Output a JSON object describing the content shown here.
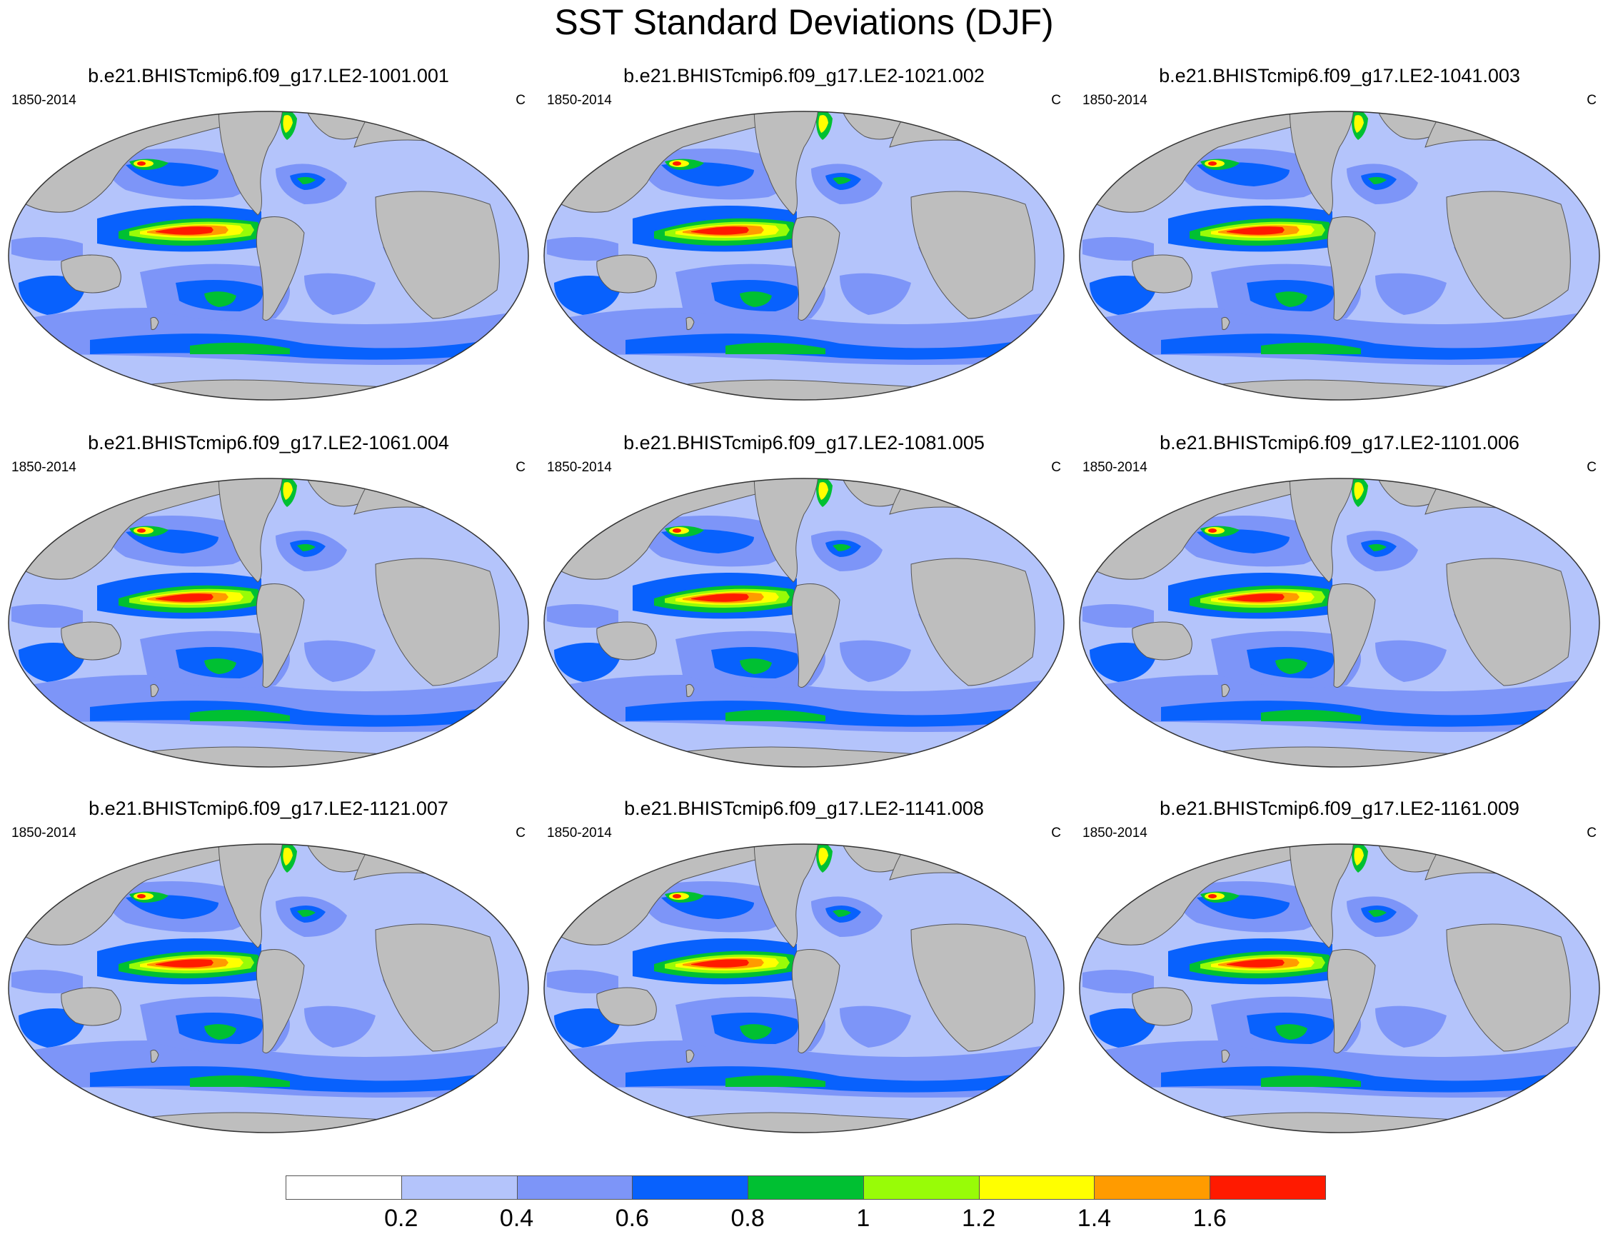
{
  "title": "SST Standard Deviations (DJF)",
  "panels": [
    {
      "title": "b.e21.BHISTcmip6.f09_g17.LE2-1001.001",
      "left_label": "1850-2014",
      "right_label": "C"
    },
    {
      "title": "b.e21.BHISTcmip6.f09_g17.LE2-1021.002",
      "left_label": "1850-2014",
      "right_label": "C"
    },
    {
      "title": "b.e21.BHISTcmip6.f09_g17.LE2-1041.003",
      "left_label": "1850-2014",
      "right_label": "C"
    },
    {
      "title": "b.e21.BHISTcmip6.f09_g17.LE2-1061.004",
      "left_label": "1850-2014",
      "right_label": "C"
    },
    {
      "title": "b.e21.BHISTcmip6.f09_g17.LE2-1081.005",
      "left_label": "1850-2014",
      "right_label": "C"
    },
    {
      "title": "b.e21.BHISTcmip6.f09_g17.LE2-1101.006",
      "left_label": "1850-2014",
      "right_label": "C"
    },
    {
      "title": "b.e21.BHISTcmip6.f09_g17.LE2-1121.007",
      "left_label": "1850-2014",
      "right_label": "C"
    },
    {
      "title": "b.e21.BHISTcmip6.f09_g17.LE2-1141.008",
      "left_label": "1850-2014",
      "right_label": "C"
    },
    {
      "title": "b.e21.BHISTcmip6.f09_g17.LE2-1161.009",
      "left_label": "1850-2014",
      "right_label": "C"
    }
  ],
  "colorbar": {
    "labels": [
      "0.2",
      "0.4",
      "0.6",
      "0.8",
      "1",
      "1.2",
      "1.4",
      "1.6"
    ],
    "colors": [
      "#ffffff",
      "#b4c4fb",
      "#7d95f8",
      "#0861fd",
      "#00c032",
      "#98fc07",
      "#ffff00",
      "#ff9b00",
      "#ff1a00"
    ]
  },
  "colors": {
    "land": "#bebebe",
    "ocean_base": "#b4c4fb"
  }
}
